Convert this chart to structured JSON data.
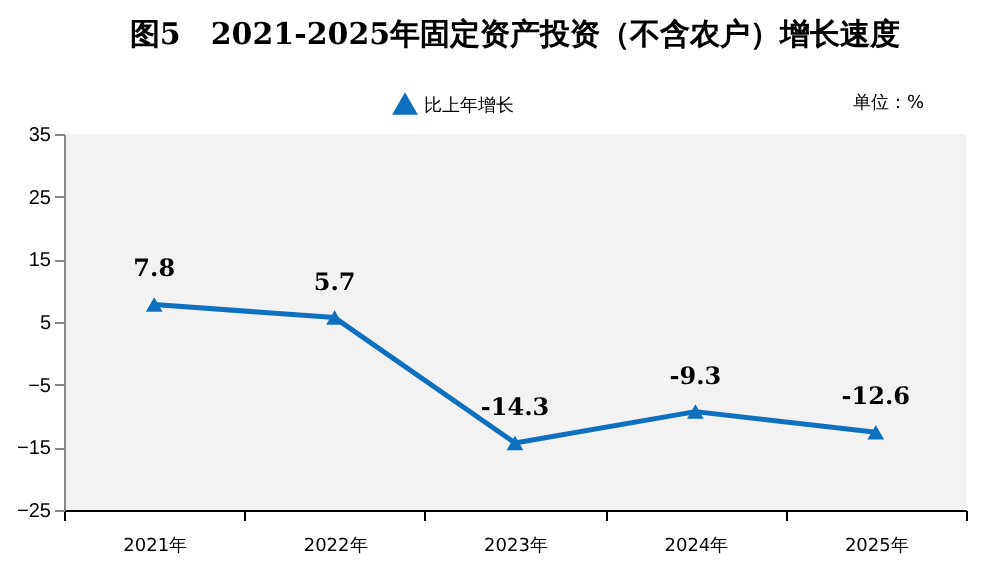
{
  "chart_data": {
    "type": "line",
    "title": "图5　2021-2025年固定资产投资（不含农户）增长速度",
    "categories": [
      "2021年",
      "2022年",
      "2023年",
      "2024年",
      "2025年"
    ],
    "series": [
      {
        "name": "比上年增长",
        "color": "#1070c0",
        "values": [
          7.8,
          5.7,
          -14.3,
          -9.3,
          -12.6
        ],
        "value_labels": [
          "7.8",
          "5.7",
          "-14.3",
          "-9.3",
          "-12.6"
        ]
      }
    ],
    "ylim": [
      -25,
      35
    ],
    "yticks": [
      -25,
      -15,
      -5,
      5,
      15,
      25,
      35
    ],
    "annotations": [
      "单位：%"
    ],
    "legend": "top",
    "marker": "triangle",
    "grid": false
  }
}
